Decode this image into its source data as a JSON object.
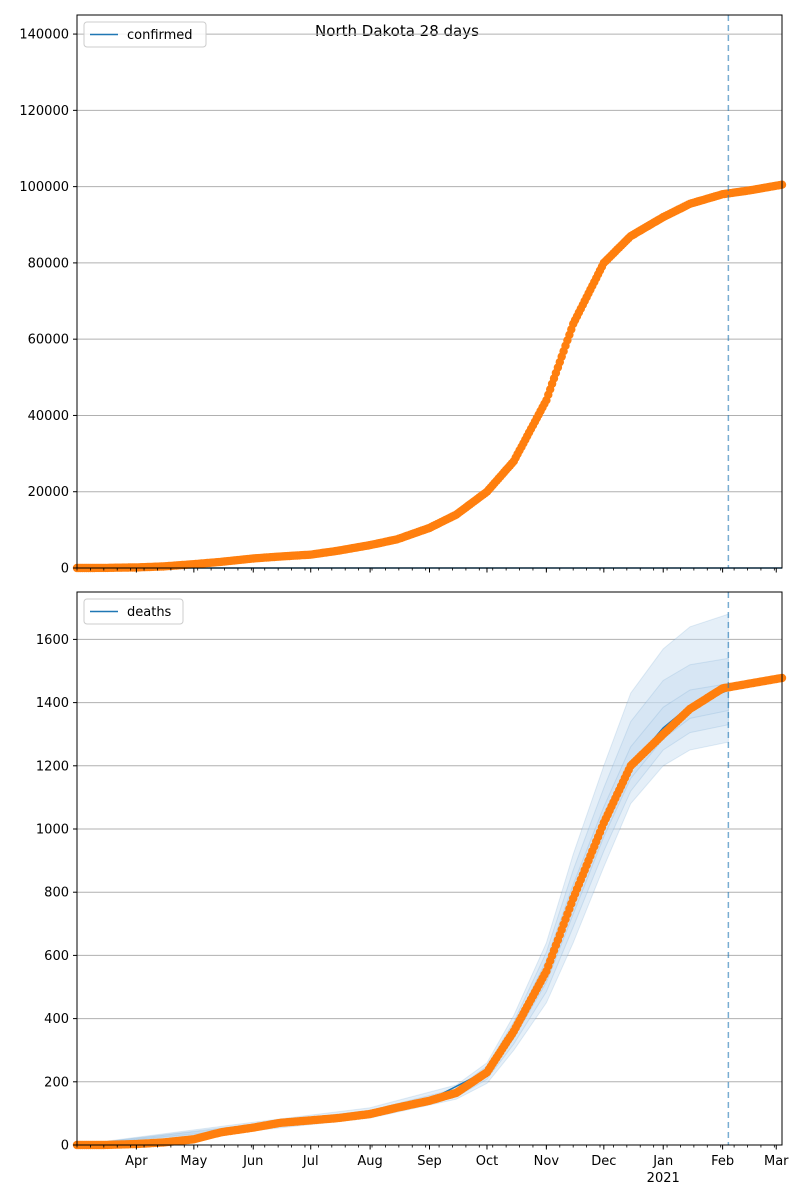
{
  "title": "North Dakota 28 days",
  "colors": {
    "observed": "#ff7f0e",
    "model": "#1f77b4",
    "grid": "#b0b0b0",
    "band": "#c6dbef",
    "vline": "#1f77b4"
  },
  "x_axis": {
    "month_ticks": [
      "Apr",
      "May",
      "Jun",
      "Jul",
      "Aug",
      "Sep",
      "Oct",
      "Nov",
      "Dec",
      "Jan",
      "Feb",
      "Mar"
    ],
    "year_label": "2021",
    "forecast_start": "2021-02-04"
  },
  "chart_data": [
    {
      "type": "scatter",
      "legend": "confirmed",
      "legend_placement": "top-left",
      "grid": "horizontal",
      "xlim": [
        "2020-03-01",
        "2021-03-04"
      ],
      "ylim": [
        0,
        145000
      ],
      "yticks": [
        0,
        20000,
        40000,
        60000,
        80000,
        100000,
        120000,
        140000
      ],
      "series": [
        {
          "name": "confirmed",
          "role": "observed",
          "points": [
            [
              "2020-03-01",
              0
            ],
            [
              "2020-03-15",
              20
            ],
            [
              "2020-04-01",
              150
            ],
            [
              "2020-04-15",
              400
            ],
            [
              "2020-05-01",
              1000
            ],
            [
              "2020-05-15",
              1600
            ],
            [
              "2020-06-01",
              2500
            ],
            [
              "2020-06-15",
              3000
            ],
            [
              "2020-07-01",
              3500
            ],
            [
              "2020-07-15",
              4500
            ],
            [
              "2020-08-01",
              6000
            ],
            [
              "2020-08-15",
              7500
            ],
            [
              "2020-09-01",
              10500
            ],
            [
              "2020-09-15",
              14000
            ],
            [
              "2020-10-01",
              20000
            ],
            [
              "2020-10-15",
              28000
            ],
            [
              "2020-11-01",
              44000
            ],
            [
              "2020-11-15",
              64000
            ],
            [
              "2020-12-01",
              80000
            ],
            [
              "2020-12-15",
              87000
            ],
            [
              "2021-01-01",
              92000
            ],
            [
              "2021-01-15",
              95500
            ],
            [
              "2021-02-01",
              98000
            ],
            [
              "2021-02-15",
              99000
            ],
            [
              "2021-03-04",
              100500
            ]
          ]
        },
        {
          "name": "confirmed",
          "role": "model",
          "points": [
            [
              "2020-03-01",
              0
            ],
            [
              "2021-03-04",
              0
            ]
          ]
        }
      ]
    },
    {
      "type": "scatter",
      "legend": "deaths",
      "legend_placement": "top-left",
      "grid": "horizontal",
      "xlim": [
        "2020-03-01",
        "2021-03-04"
      ],
      "ylim": [
        0,
        1750
      ],
      "yticks": [
        0,
        200,
        400,
        600,
        800,
        1000,
        1200,
        1400,
        1600
      ],
      "series": [
        {
          "name": "deaths",
          "role": "observed",
          "points": [
            [
              "2020-03-01",
              0
            ],
            [
              "2020-03-15",
              0
            ],
            [
              "2020-04-01",
              3
            ],
            [
              "2020-04-15",
              8
            ],
            [
              "2020-05-01",
              18
            ],
            [
              "2020-05-15",
              40
            ],
            [
              "2020-06-01",
              55
            ],
            [
              "2020-06-15",
              70
            ],
            [
              "2020-07-01",
              78
            ],
            [
              "2020-07-15",
              85
            ],
            [
              "2020-08-01",
              98
            ],
            [
              "2020-08-15",
              118
            ],
            [
              "2020-09-01",
              140
            ],
            [
              "2020-09-15",
              165
            ],
            [
              "2020-10-01",
              230
            ],
            [
              "2020-10-15",
              360
            ],
            [
              "2020-11-01",
              550
            ],
            [
              "2020-11-15",
              780
            ],
            [
              "2020-12-01",
              1020
            ],
            [
              "2020-12-15",
              1200
            ],
            [
              "2021-01-01",
              1300
            ],
            [
              "2021-01-15",
              1380
            ],
            [
              "2021-02-01",
              1445
            ],
            [
              "2021-02-15",
              1460
            ],
            [
              "2021-03-04",
              1478
            ]
          ]
        },
        {
          "name": "deaths",
          "role": "model",
          "points": [
            [
              "2020-03-01",
              0
            ],
            [
              "2020-04-01",
              4
            ],
            [
              "2020-05-01",
              20
            ],
            [
              "2020-06-01",
              58
            ],
            [
              "2020-07-01",
              80
            ],
            [
              "2020-08-01",
              100
            ],
            [
              "2020-09-01",
              142
            ],
            [
              "2020-10-01",
              235
            ],
            [
              "2020-10-15",
              360
            ],
            [
              "2020-11-01",
              550
            ],
            [
              "2020-11-15",
              780
            ],
            [
              "2020-12-01",
              1010
            ],
            [
              "2020-12-15",
              1200
            ],
            [
              "2021-01-01",
              1320
            ],
            [
              "2021-01-15",
              1390
            ],
            [
              "2021-02-04",
              1440
            ]
          ]
        }
      ],
      "bands": [
        {
          "x": [
            "2020-03-01",
            "2020-06-01",
            "2020-08-01",
            "2020-09-15",
            "2020-10-01",
            "2020-10-15",
            "2020-11-01",
            "2020-11-15",
            "2020-12-01",
            "2020-12-15",
            "2021-01-01",
            "2021-01-15",
            "2021-02-04"
          ],
          "lower": [
            0,
            45,
            85,
            145,
            195,
            300,
            450,
            640,
            880,
            1080,
            1200,
            1250,
            1275
          ],
          "upper": [
            0,
            72,
            118,
            190,
            260,
            410,
            640,
            920,
            1200,
            1430,
            1570,
            1640,
            1680
          ]
        },
        {
          "x": [
            "2020-03-01",
            "2020-06-01",
            "2020-08-01",
            "2020-09-15",
            "2020-10-01",
            "2020-10-15",
            "2020-11-01",
            "2020-11-15",
            "2020-12-01",
            "2020-12-15",
            "2021-01-01",
            "2021-01-15",
            "2021-02-04"
          ],
          "lower": [
            0,
            50,
            90,
            152,
            208,
            320,
            485,
            690,
            930,
            1120,
            1250,
            1305,
            1330
          ],
          "upper": [
            0,
            66,
            110,
            178,
            250,
            390,
            610,
            870,
            1130,
            1340,
            1470,
            1520,
            1540
          ]
        },
        {
          "x": [
            "2020-03-01",
            "2020-06-01",
            "2020-08-01",
            "2020-09-15",
            "2020-10-01",
            "2020-10-15",
            "2020-11-01",
            "2020-11-15",
            "2020-12-01",
            "2020-12-15",
            "2021-01-01",
            "2021-01-15",
            "2021-02-04"
          ],
          "lower": [
            0,
            54,
            94,
            158,
            218,
            338,
            515,
            730,
            975,
            1160,
            1285,
            1350,
            1375
          ],
          "upper": [
            0,
            62,
            106,
            170,
            240,
            375,
            585,
            825,
            1070,
            1260,
            1385,
            1440,
            1460
          ]
        }
      ]
    }
  ]
}
